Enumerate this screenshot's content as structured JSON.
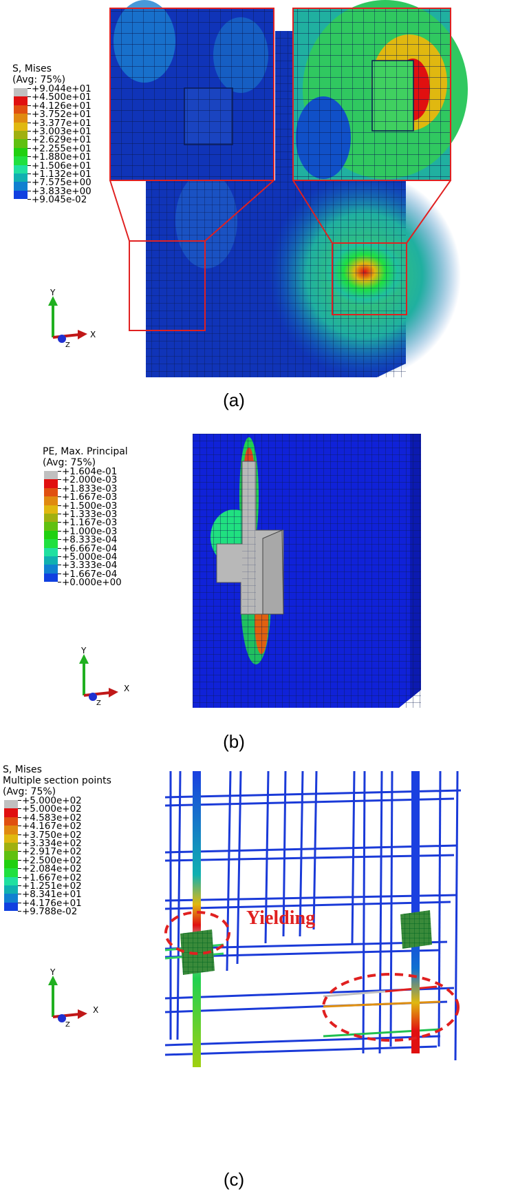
{
  "panel_a": {
    "legend_title": "S, Mises",
    "legend_subtitle": "(Avg: 75%)",
    "legend_values": [
      "+9.044e+01",
      "+4.500e+01",
      "+4.126e+01",
      "+3.752e+01",
      "+3.377e+01",
      "+3.003e+01",
      "+2.629e+01",
      "+2.255e+01",
      "+1.880e+01",
      "+1.506e+01",
      "+1.132e+01",
      "+7.575e+00",
      "+3.833e+00",
      "+9.045e-02"
    ],
    "caption": "(a)",
    "axis_y": "Y",
    "axis_x": "X",
    "axis_z": "Z"
  },
  "panel_b": {
    "legend_title": "PE, Max. Principal",
    "legend_subtitle": "(Avg: 75%)",
    "legend_values": [
      "+1.604e-01",
      "+2.000e-03",
      "+1.833e-03",
      "+1.667e-03",
      "+1.500e-03",
      "+1.333e-03",
      "+1.167e-03",
      "+1.000e-03",
      "+8.333e-04",
      "+6.667e-04",
      "+5.000e-04",
      "+3.333e-04",
      "+1.667e-04",
      "+0.000e+00"
    ],
    "caption": "(b)",
    "axis_y": "Y",
    "axis_x": "X",
    "axis_z": "Z"
  },
  "panel_c": {
    "legend_title": "S, Mises",
    "legend_subtitle1": "Multiple section points",
    "legend_subtitle2": "(Avg: 75%)",
    "legend_values": [
      "+5.000e+02",
      "+5.000e+02",
      "+4.583e+02",
      "+4.167e+02",
      "+3.750e+02",
      "+3.334e+02",
      "+2.917e+02",
      "+2.500e+02",
      "+2.084e+02",
      "+1.667e+02",
      "+1.251e+02",
      "+8.341e+01",
      "+4.176e+01",
      "+9.788e-02"
    ],
    "annotation": "Yielding",
    "caption": "(c)",
    "axis_y": "Y",
    "axis_x": "X",
    "axis_z": "Z"
  },
  "colors": {
    "scale": [
      "#c0c0c0",
      "#e01010",
      "#e05010",
      "#e08a10",
      "#e0b810",
      "#a0b010",
      "#60c010",
      "#20d010",
      "#20e040",
      "#20e0a0",
      "#10b0b0",
      "#1080d0",
      "#1040e0",
      "#1010f0"
    ],
    "contour_base": "#1030c0",
    "highlight_red": "#e02020"
  }
}
